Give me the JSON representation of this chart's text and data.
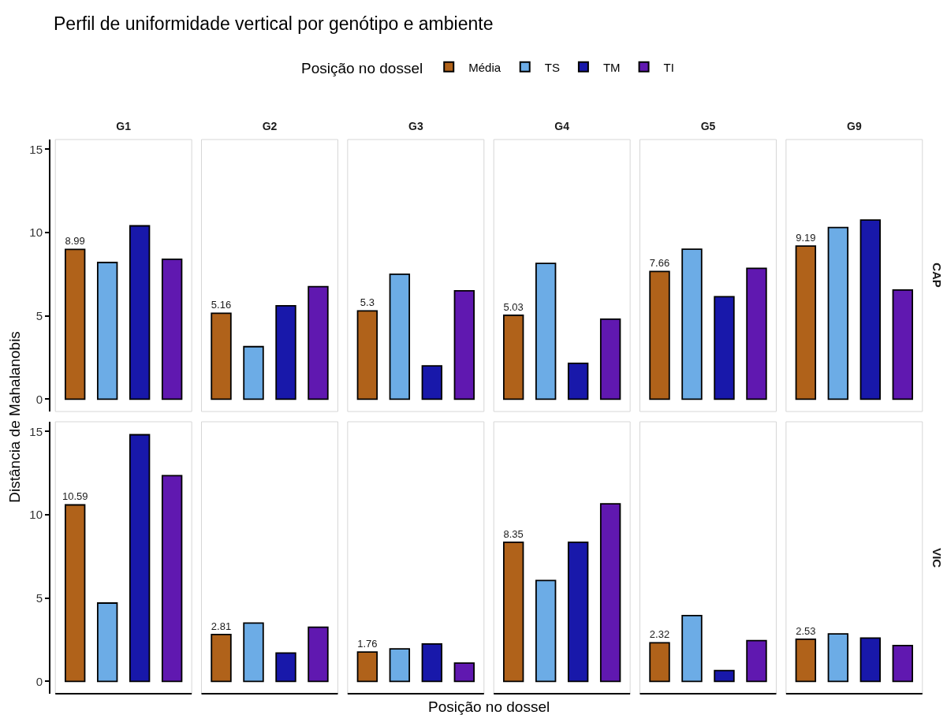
{
  "chart_data": [
    {
      "type": "bar",
      "title": "Perfil de uniformidade vertical por genótipo e ambiente",
      "legend_title": "Posição no dossel",
      "legend": "top",
      "ylabel": "Distância de Mahalanobis",
      "annotations": [
        "CAP"
      ],
      "categories": [
        "G1",
        "G2",
        "G3",
        "G4",
        "G5",
        "G9"
      ],
      "series": [
        {
          "name": "Média",
          "color": "#B0621A",
          "values": [
            8.99,
            5.16,
            5.3,
            5.03,
            7.66,
            9.19
          ],
          "value_labels": [
            "8.99",
            "5.16",
            "5.3",
            "5.03",
            "7.66",
            "9.19"
          ]
        },
        {
          "name": "TS",
          "color": "#6CACE6",
          "values": [
            8.2,
            3.15,
            7.5,
            8.15,
            9.0,
            10.3
          ]
        },
        {
          "name": "TM",
          "color": "#1818AA",
          "values": [
            10.4,
            5.6,
            2.0,
            2.15,
            6.15,
            10.75
          ]
        },
        {
          "name": "TI",
          "color": "#6018B0",
          "values": [
            8.4,
            6.75,
            6.5,
            4.8,
            7.85,
            6.55
          ]
        }
      ],
      "ylim": [
        -0.74,
        15.58
      ],
      "yticks": [
        0,
        5,
        10,
        15
      ]
    },
    {
      "type": "bar",
      "xlabel": "Posição no dossel",
      "annotations": [
        "VIC"
      ],
      "categories": [
        "G1",
        "G2",
        "G3",
        "G4",
        "G5",
        "G9"
      ],
      "series": [
        {
          "color": "#B0621A",
          "values": [
            10.59,
            2.81,
            1.76,
            8.35,
            2.32,
            2.53
          ],
          "value_labels": [
            "10.59",
            "2.81",
            "1.76",
            "8.35",
            "2.32",
            "2.53"
          ]
        },
        {
          "color": "#6CACE6",
          "values": [
            4.7,
            3.5,
            1.95,
            6.05,
            3.95,
            2.85
          ]
        },
        {
          "color": "#1818AA",
          "values": [
            14.8,
            1.7,
            2.25,
            8.35,
            0.65,
            2.6
          ]
        },
        {
          "color": "#6018B0",
          "values": [
            12.35,
            3.25,
            1.1,
            10.65,
            2.45,
            2.15
          ]
        }
      ],
      "ylim": [
        -0.74,
        15.58
      ],
      "yticks": [
        0,
        5,
        10,
        15
      ],
      "tick_labels": "y"
    }
  ]
}
